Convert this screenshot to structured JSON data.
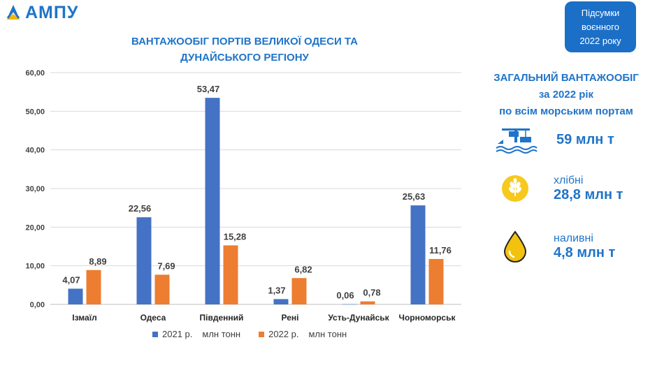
{
  "logo": {
    "text": "АМПУ"
  },
  "badge": {
    "lines": [
      "Підсумки",
      "воєнного",
      "2022 року"
    ]
  },
  "chart_data": {
    "type": "bar",
    "title_lines": [
      "ВАНТАЖООБІГ ПОРТІВ ВЕЛИКОЇ ОДЕСИ ТА",
      "ДУНАЙСЬКОГО РЕГІОНУ"
    ],
    "categories": [
      "Ізмаїл",
      "Одеса",
      "Південний",
      "Рені",
      "Усть-Дунайськ",
      "Чорноморськ"
    ],
    "series": [
      {
        "name": "2021 р.",
        "color": "#4472c4",
        "values": [
          4.07,
          22.56,
          53.47,
          1.37,
          0.06,
          25.63
        ],
        "labels": [
          "4,07",
          "22,56",
          "53,47",
          "1,37",
          "0,06",
          "25,63"
        ]
      },
      {
        "name": "2022 р.",
        "color": "#ed7d31",
        "values": [
          8.89,
          7.69,
          15.28,
          6.82,
          0.78,
          11.76
        ],
        "labels": [
          "8,89",
          "7,69",
          "15,28",
          "6,82",
          "0,78",
          "11,76"
        ]
      }
    ],
    "y_ticks": [
      "0,00",
      "10,00",
      "20,00",
      "30,00",
      "40,00",
      "50,00",
      "60,00"
    ],
    "ylim": [
      0,
      60
    ],
    "unit": "млн тонн",
    "grid": true,
    "legend_position": "bottom"
  },
  "summary": {
    "title_lines": [
      "ЗАГАЛЬНИЙ ВАНТАЖООБІГ",
      "за 2022 рік",
      "по всім морським портам"
    ],
    "total": {
      "value": "59 млн т",
      "icon": "port-crane-icon"
    },
    "grain": {
      "label": "хлібні",
      "value": "28,8 млн т",
      "icon": "wheat-icon"
    },
    "liquid": {
      "label": "наливні",
      "value": "4,8 млн т",
      "icon": "oil-drop-icon"
    }
  }
}
